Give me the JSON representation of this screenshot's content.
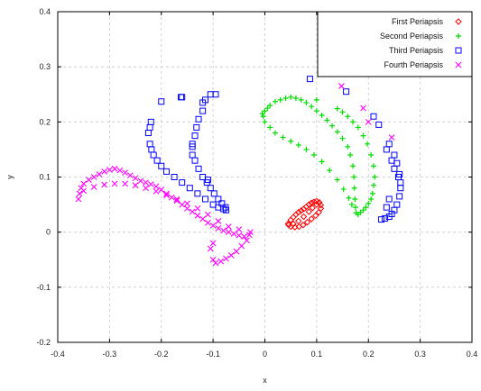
{
  "chart_data": {
    "type": "scatter",
    "title": "",
    "xlabel": "x",
    "ylabel": "y",
    "xlim": [
      -0.4,
      0.4
    ],
    "ylim": [
      -0.2,
      0.4
    ],
    "xticks": [
      -0.4,
      -0.3,
      -0.2,
      -0.1,
      0,
      0.1,
      0.2,
      0.3,
      0.4
    ],
    "yticks": [
      -0.2,
      -0.1,
      0,
      0.1,
      0.2,
      0.3,
      0.4
    ],
    "grid": true,
    "legend_position": "top-right",
    "series": [
      {
        "name": "First Periapsis",
        "color": "#ff0000",
        "marker": "diamond",
        "points": [
          [
            0.045,
            0.015
          ],
          [
            0.05,
            0.022
          ],
          [
            0.055,
            0.027
          ],
          [
            0.06,
            0.032
          ],
          [
            0.065,
            0.036
          ],
          [
            0.07,
            0.039
          ],
          [
            0.075,
            0.042
          ],
          [
            0.08,
            0.046
          ],
          [
            0.085,
            0.05
          ],
          [
            0.09,
            0.053
          ],
          [
            0.095,
            0.055
          ],
          [
            0.1,
            0.056
          ],
          [
            0.105,
            0.054
          ],
          [
            0.108,
            0.049
          ],
          [
            0.108,
            0.043
          ],
          [
            0.104,
            0.036
          ],
          [
            0.098,
            0.03
          ],
          [
            0.09,
            0.024
          ],
          [
            0.082,
            0.018
          ],
          [
            0.074,
            0.013
          ],
          [
            0.066,
            0.01
          ],
          [
            0.058,
            0.009
          ],
          [
            0.05,
            0.01
          ],
          [
            0.046,
            0.013
          ],
          [
            0.055,
            0.015
          ],
          [
            0.065,
            0.02
          ],
          [
            0.075,
            0.028
          ],
          [
            0.085,
            0.037
          ],
          [
            0.092,
            0.044
          ],
          [
            0.1,
            0.05
          ]
        ]
      },
      {
        "name": "Second Periapsis",
        "color": "#00dd00",
        "marker": "plus",
        "points": [
          [
            0.0,
            0.22
          ],
          [
            -0.005,
            0.215
          ],
          [
            0.005,
            0.225
          ],
          [
            0.01,
            0.23
          ],
          [
            0.02,
            0.237
          ],
          [
            0.03,
            0.24
          ],
          [
            0.04,
            0.243
          ],
          [
            0.05,
            0.245
          ],
          [
            0.06,
            0.243
          ],
          [
            0.07,
            0.24
          ],
          [
            0.08,
            0.235
          ],
          [
            0.09,
            0.228
          ],
          [
            0.1,
            0.22
          ],
          [
            0.11,
            0.212
          ],
          [
            0.12,
            0.203
          ],
          [
            0.13,
            0.193
          ],
          [
            0.14,
            0.182
          ],
          [
            0.15,
            0.17
          ],
          [
            0.16,
            0.155
          ],
          [
            0.165,
            0.14
          ],
          [
            0.17,
            0.12
          ],
          [
            0.172,
            0.1
          ],
          [
            0.173,
            0.08
          ],
          [
            0.174,
            0.06
          ],
          [
            0.175,
            0.045
          ],
          [
            0.176,
            0.035
          ],
          [
            0.18,
            0.032
          ],
          [
            0.185,
            0.036
          ],
          [
            0.19,
            0.04
          ],
          [
            0.195,
            0.045
          ],
          [
            0.2,
            0.052
          ],
          [
            0.205,
            0.06
          ],
          [
            0.208,
            0.07
          ],
          [
            0.21,
            0.085
          ],
          [
            0.212,
            0.1
          ],
          [
            0.21,
            0.12
          ],
          [
            0.205,
            0.14
          ],
          [
            0.198,
            0.16
          ],
          [
            0.19,
            0.175
          ],
          [
            0.18,
            0.19
          ],
          [
            0.17,
            0.2
          ],
          [
            0.16,
            0.21
          ],
          [
            0.15,
            0.218
          ],
          [
            0.14,
            0.224
          ],
          [
            0.1,
            0.24
          ],
          [
            0.01,
            0.19
          ],
          [
            0.02,
            0.18
          ],
          [
            0.035,
            0.172
          ],
          [
            0.05,
            0.165
          ],
          [
            0.065,
            0.158
          ],
          [
            0.08,
            0.15
          ],
          [
            0.095,
            0.14
          ],
          [
            0.11,
            0.128
          ],
          [
            0.125,
            0.112
          ],
          [
            0.14,
            0.095
          ],
          [
            0.152,
            0.078
          ],
          [
            0.162,
            0.062
          ],
          [
            0.168,
            0.05
          ],
          [
            0.0,
            0.2
          ],
          [
            -0.003,
            0.21
          ]
        ]
      },
      {
        "name": "Third Periapsis",
        "color": "#0000ff",
        "marker": "square",
        "points": [
          [
            -0.22,
            0.2
          ],
          [
            -0.222,
            0.19
          ],
          [
            -0.225,
            0.18
          ],
          [
            -0.222,
            0.16
          ],
          [
            -0.219,
            0.15
          ],
          [
            -0.215,
            0.14
          ],
          [
            -0.208,
            0.13
          ],
          [
            -0.2,
            0.12
          ],
          [
            -0.19,
            0.11
          ],
          [
            -0.175,
            0.1
          ],
          [
            -0.16,
            0.09
          ],
          [
            -0.145,
            0.08
          ],
          [
            -0.13,
            0.07
          ],
          [
            -0.115,
            0.06
          ],
          [
            -0.1,
            0.05
          ],
          [
            -0.09,
            0.045
          ],
          [
            -0.08,
            0.042
          ],
          [
            -0.075,
            0.04
          ],
          [
            -0.12,
            0.235
          ],
          [
            -0.115,
            0.24
          ],
          [
            -0.105,
            0.25
          ],
          [
            -0.12,
            0.22
          ],
          [
            -0.128,
            0.205
          ],
          [
            -0.132,
            0.19
          ],
          [
            -0.135,
            0.175
          ],
          [
            -0.14,
            0.16
          ],
          [
            -0.14,
            0.14
          ],
          [
            -0.135,
            0.13
          ],
          [
            -0.128,
            0.115
          ],
          [
            -0.12,
            0.1
          ],
          [
            -0.112,
            0.09
          ],
          [
            -0.105,
            0.08
          ],
          [
            -0.098,
            0.07
          ],
          [
            -0.09,
            0.06
          ],
          [
            -0.083,
            0.052
          ],
          [
            -0.076,
            0.045
          ],
          [
            -0.2,
            0.237
          ],
          [
            -0.162,
            0.245
          ],
          [
            -0.16,
            0.245
          ],
          [
            -0.095,
            0.25
          ],
          [
            -0.14,
            0.155
          ],
          [
            -0.11,
            0.095
          ],
          [
            0.087,
            0.278
          ],
          [
            0.157,
            0.255
          ],
          [
            0.21,
            0.21
          ],
          [
            0.22,
            0.195
          ],
          [
            0.235,
            0.15
          ],
          [
            0.245,
            0.13
          ],
          [
            0.25,
            0.115
          ],
          [
            0.258,
            0.1
          ],
          [
            0.262,
            0.08
          ],
          [
            0.26,
            0.065
          ],
          [
            0.255,
            0.05
          ],
          [
            0.25,
            0.04
          ],
          [
            0.245,
            0.033
          ],
          [
            0.24,
            0.028
          ],
          [
            0.232,
            0.025
          ],
          [
            0.225,
            0.023
          ],
          [
            0.24,
            0.16
          ],
          [
            0.25,
            0.14
          ],
          [
            0.255,
            0.125
          ],
          [
            0.26,
            0.105
          ],
          [
            0.262,
            0.09
          ],
          [
            0.24,
            0.06
          ],
          [
            0.235,
            0.045
          ]
        ]
      },
      {
        "name": "Fourth Periapsis",
        "color": "#ff00ff",
        "marker": "cross",
        "points": [
          [
            -0.36,
            0.06
          ],
          [
            -0.358,
            0.07
          ],
          [
            -0.355,
            0.08
          ],
          [
            -0.35,
            0.088
          ],
          [
            -0.34,
            0.095
          ],
          [
            -0.33,
            0.1
          ],
          [
            -0.32,
            0.105
          ],
          [
            -0.31,
            0.11
          ],
          [
            -0.3,
            0.113
          ],
          [
            -0.29,
            0.115
          ],
          [
            -0.28,
            0.112
          ],
          [
            -0.27,
            0.108
          ],
          [
            -0.26,
            0.103
          ],
          [
            -0.25,
            0.098
          ],
          [
            -0.24,
            0.093
          ],
          [
            -0.23,
            0.09
          ],
          [
            -0.22,
            0.087
          ],
          [
            -0.21,
            0.083
          ],
          [
            -0.2,
            0.077
          ],
          [
            -0.19,
            0.07
          ],
          [
            -0.18,
            0.063
          ],
          [
            -0.17,
            0.057
          ],
          [
            -0.16,
            0.05
          ],
          [
            -0.15,
            0.043
          ],
          [
            -0.14,
            0.037
          ],
          [
            -0.13,
            0.03
          ],
          [
            -0.12,
            0.024
          ],
          [
            -0.11,
            0.017
          ],
          [
            -0.1,
            0.012
          ],
          [
            -0.09,
            0.007
          ],
          [
            -0.08,
            0.003
          ],
          [
            -0.07,
            0.0
          ],
          [
            -0.06,
            -0.003
          ],
          [
            -0.05,
            -0.006
          ],
          [
            -0.04,
            -0.008
          ],
          [
            -0.03,
            -0.005
          ],
          [
            -0.028,
            0.0
          ],
          [
            -0.035,
            -0.015
          ],
          [
            -0.045,
            -0.025
          ],
          [
            -0.055,
            -0.035
          ],
          [
            -0.065,
            -0.042
          ],
          [
            -0.075,
            -0.048
          ],
          [
            -0.085,
            -0.053
          ],
          [
            -0.095,
            -0.056
          ],
          [
            -0.1,
            -0.05
          ],
          [
            -0.105,
            -0.03
          ],
          [
            -0.1,
            -0.02
          ],
          [
            -0.35,
            0.075
          ],
          [
            -0.33,
            0.082
          ],
          [
            -0.31,
            0.086
          ],
          [
            -0.29,
            0.088
          ],
          [
            -0.27,
            0.088
          ],
          [
            -0.25,
            0.085
          ],
          [
            -0.23,
            0.08
          ],
          [
            -0.21,
            0.074
          ],
          [
            -0.19,
            0.067
          ],
          [
            -0.17,
            0.06
          ],
          [
            -0.15,
            0.052
          ],
          [
            -0.13,
            0.043
          ],
          [
            -0.11,
            0.032
          ],
          [
            -0.09,
            0.02
          ],
          [
            -0.07,
            0.01
          ],
          [
            -0.05,
            0.005
          ],
          [
            0.148,
            0.265
          ],
          [
            0.19,
            0.225
          ],
          [
            0.245,
            0.172
          ],
          [
            0.2,
            0.2
          ]
        ]
      }
    ]
  }
}
